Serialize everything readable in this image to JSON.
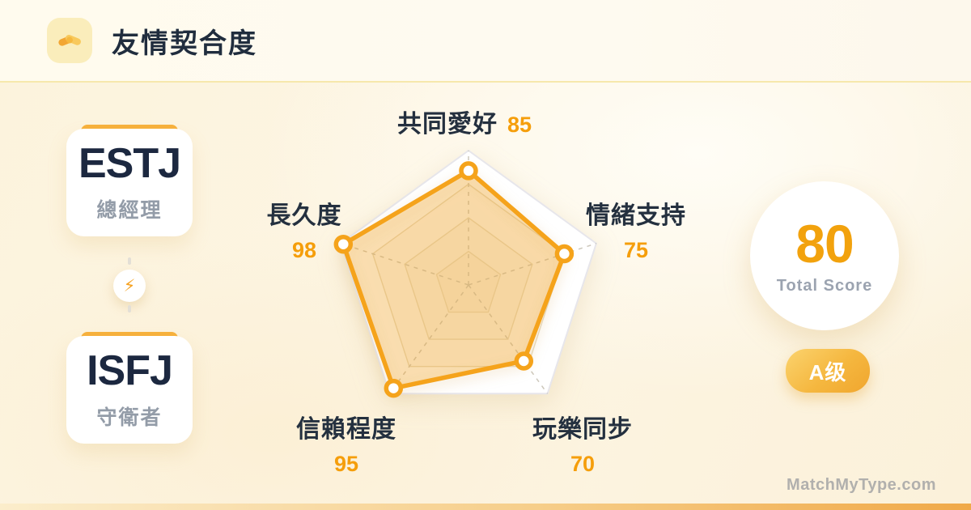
{
  "header": {
    "icon": "handshake-icon",
    "title": "友情契合度"
  },
  "pair": {
    "person_a": {
      "mbti": "ESTJ",
      "role": "總經理"
    },
    "person_b": {
      "mbti": "ISFJ",
      "role": "守衛者"
    },
    "connector_icon": "lightning-icon",
    "connector_glyph": "⚡"
  },
  "chart_data": {
    "type": "radar",
    "title": "友情契合度",
    "max": 100,
    "grid": "pentagon rings at 25/50/75/100 with dashed spokes",
    "grid_rings": [
      1,
      0.75,
      0.5,
      0.25
    ],
    "axes": [
      {
        "label": "共同愛好",
        "value": 85,
        "position": "top"
      },
      {
        "label": "情緒支持",
        "value": 75,
        "position": "right"
      },
      {
        "label": "玩樂同步",
        "value": 70,
        "position": "bottom-right"
      },
      {
        "label": "信賴程度",
        "value": 95,
        "position": "bottom-left"
      },
      {
        "label": "長久度",
        "value": 98,
        "position": "left"
      }
    ],
    "colors": {
      "line": "#F5A31B",
      "fill": "rgba(245,163,27,0.30)",
      "marker_fill": "#FFFFFF"
    }
  },
  "score": {
    "value": "80",
    "label": "Total Score",
    "grade": "A级"
  },
  "watermark": "MatchMyType.com",
  "theme": {
    "accent_orange": "#F5A31B",
    "card_tab_orange": "#F7B13C",
    "heading_navy": "#22303F",
    "value_orange": "#F59E0B",
    "background_cream": "#FCF3DC"
  }
}
